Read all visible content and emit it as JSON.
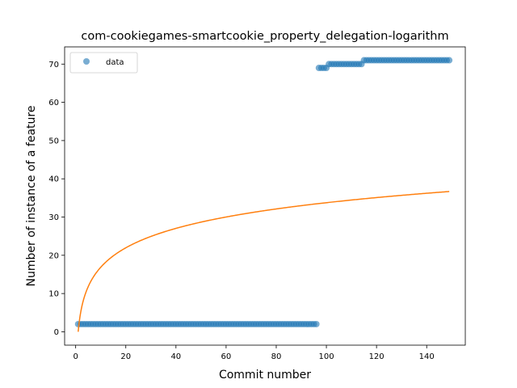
{
  "chart_data": {
    "type": "scatter",
    "title": "com-cookiegames-smartcookie_property_delegation-logarithm",
    "xlabel": "Commit number",
    "ylabel": "Number of instance of a feature",
    "xlim": [
      -4.4,
      155.4
    ],
    "ylim": [
      -3.5,
      74.5
    ],
    "xticks": [
      0,
      20,
      40,
      60,
      80,
      100,
      120,
      140
    ],
    "yticks": [
      0,
      10,
      20,
      30,
      40,
      50,
      60,
      70
    ],
    "grid": false,
    "legend": {
      "position": "top-left",
      "entries": [
        "data"
      ]
    },
    "colors": {
      "data": "#1f77b4",
      "fit": "#ff7f0e"
    },
    "series": [
      {
        "name": "data",
        "kind": "scatter",
        "segments": [
          {
            "x_from": 1,
            "x_to": 96,
            "y": 2
          },
          {
            "x_from": 97,
            "x_to": 100,
            "y": 69
          },
          {
            "x_from": 101,
            "x_to": 114,
            "y": 70
          },
          {
            "x_from": 115,
            "x_to": 149,
            "y": 71
          }
        ]
      },
      {
        "kind": "line",
        "function": "logarithmic",
        "a": 7.33,
        "b": 0,
        "x_from": 1,
        "x_to": 149
      }
    ]
  }
}
